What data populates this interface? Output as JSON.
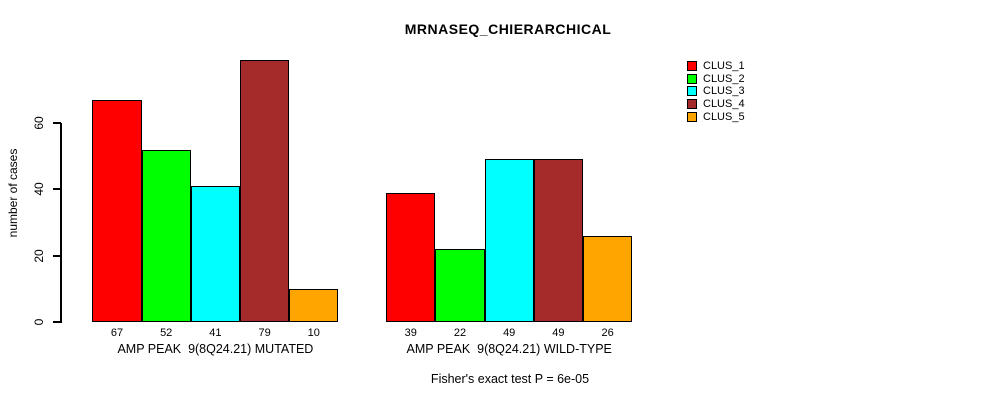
{
  "title": "MRNASEQ_CHIERARCHICAL",
  "y_axis": {
    "label": "number of cases",
    "ticks": [
      0,
      20,
      40,
      60
    ]
  },
  "legend": {
    "entries": [
      {
        "label": "CLUS_1",
        "color": "#FF0000"
      },
      {
        "label": "CLUS_2",
        "color": "#00FF00"
      },
      {
        "label": "CLUS_3",
        "color": "#00FFFF"
      },
      {
        "label": "CLUS_4",
        "color": "#A52A2A"
      },
      {
        "label": "CLUS_5",
        "color": "#FFA500"
      }
    ]
  },
  "footnote": "Fisher's exact test P = 6e-05",
  "chart_data": {
    "type": "bar",
    "title": "MRNASEQ_CHIERARCHICAL",
    "xlabel": "",
    "ylabel": "number of cases",
    "ylim": [
      0,
      80
    ],
    "yticks": [
      0,
      20,
      40,
      60
    ],
    "grid": false,
    "legend_position": "top-right",
    "series_names": [
      "CLUS_1",
      "CLUS_2",
      "CLUS_3",
      "CLUS_4",
      "CLUS_5"
    ],
    "series_colors": [
      "#FF0000",
      "#00FF00",
      "#00FFFF",
      "#A52A2A",
      "#FFA500"
    ],
    "groups": [
      {
        "label": "AMP PEAK  9(8Q24.21) MUTATED",
        "values": [
          67,
          52,
          41,
          79,
          10
        ]
      },
      {
        "label": "AMP PEAK  9(8Q24.21) WILD-TYPE",
        "values": [
          39,
          22,
          49,
          49,
          26
        ]
      }
    ],
    "bar_value_labels": true,
    "annotation": "Fisher's exact test P = 6e-05"
  }
}
